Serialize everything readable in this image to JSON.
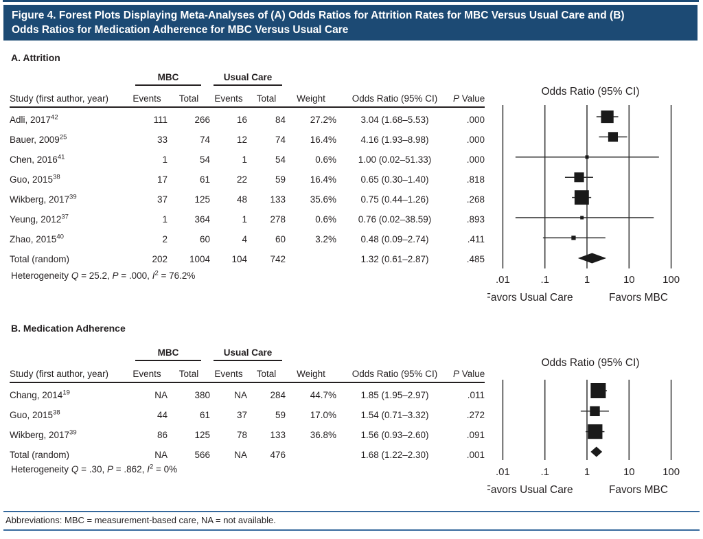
{
  "figure": {
    "title_line1": "Figure 4. Forest Plots Displaying Meta-Analyses of (A) Odds Ratios for Attrition Rates for MBC Versus Usual Care and (B)",
    "title_line2": "Odds Ratios for Medication Adherence for MBC Versus Usual Care",
    "footnote": "Abbreviations: MBC = measurement-based care, NA = not available.",
    "colors": {
      "header_bg": "#1c4a74",
      "header_text": "#ffffff",
      "rule_blue": "#35689c",
      "ink": "#231f20"
    }
  },
  "table": {
    "group_mbc": "MBC",
    "group_usual_care": "Usual Care",
    "col_study": "Study (first author, year)",
    "col_events": "Events",
    "col_total": "Total",
    "col_weight": "Weight",
    "col_or": "Odds Ratio (95% CI)",
    "col_p_italic": "P",
    "col_p_rest": " Value"
  },
  "panel_a": {
    "heading": "A. Attrition",
    "rows": [
      {
        "study": "Adli, 2017",
        "ref": "42",
        "mbc_events": "111",
        "mbc_total": "266",
        "uc_events": "16",
        "uc_total": "84",
        "weight": "27.2%",
        "or_ci": "3.04 (1.68–5.53)",
        "p": ".000"
      },
      {
        "study": "Bauer, 2009",
        "ref": "25",
        "mbc_events": "33",
        "mbc_total": "74",
        "uc_events": "12",
        "uc_total": "74",
        "weight": "16.4%",
        "or_ci": "4.16 (1.93–8.98)",
        "p": ".000"
      },
      {
        "study": "Chen, 2016",
        "ref": "41",
        "mbc_events": "1",
        "mbc_total": "54",
        "uc_events": "1",
        "uc_total": "54",
        "weight": "0.6%",
        "or_ci": "1.00 (0.02–51.33)",
        "p": ".000"
      },
      {
        "study": "Guo, 2015",
        "ref": "38",
        "mbc_events": "17",
        "mbc_total": "61",
        "uc_events": "22",
        "uc_total": "59",
        "weight": "16.4%",
        "or_ci": "0.65 (0.30–1.40)",
        "p": ".818"
      },
      {
        "study": "Wikberg, 2017",
        "ref": "39",
        "mbc_events": "37",
        "mbc_total": "125",
        "uc_events": "48",
        "uc_total": "133",
        "weight": "35.6%",
        "or_ci": "0.75 (0.44–1.26)",
        "p": ".268"
      },
      {
        "study": "Yeung, 2012",
        "ref": "37",
        "mbc_events": "1",
        "mbc_total": "364",
        "uc_events": "1",
        "uc_total": "278",
        "weight": "0.6%",
        "or_ci": "0.76 (0.02–38.59)",
        "p": ".893"
      },
      {
        "study": "Zhao, 2015",
        "ref": "40",
        "mbc_events": "2",
        "mbc_total": "60",
        "uc_events": "4",
        "uc_total": "60",
        "weight": "3.2%",
        "or_ci": "0.48 (0.09–2.74)",
        "p": ".411"
      },
      {
        "study": "Total (random)",
        "ref": "",
        "mbc_events": "202",
        "mbc_total": "1004",
        "uc_events": "104",
        "uc_total": "742",
        "weight": "",
        "or_ci": "1.32 (0.61–2.87)",
        "p": ".485"
      }
    ],
    "heterogeneity": {
      "label": "Heterogeneity ",
      "q_var": "Q",
      "q_val": " = 25.2, ",
      "p_var": "P",
      "p_val": " = .000, ",
      "i_var": "I",
      "i_exp": "2",
      "i_val": " = 76.2%"
    }
  },
  "panel_b": {
    "heading": "B. Medication Adherence",
    "rows": [
      {
        "study": "Chang, 2014",
        "ref": "19",
        "mbc_events": "NA",
        "mbc_total": "380",
        "uc_events": "NA",
        "uc_total": "284",
        "weight": "44.7%",
        "or_ci": "1.85 (1.95–2.97)",
        "p": ".011"
      },
      {
        "study": "Guo, 2015",
        "ref": "38",
        "mbc_events": "44",
        "mbc_total": "61",
        "uc_events": "37",
        "uc_total": "59",
        "weight": "17.0%",
        "or_ci": "1.54 (0.71–3.32)",
        "p": ".272"
      },
      {
        "study": "Wikberg, 2017",
        "ref": "39",
        "mbc_events": "86",
        "mbc_total": "125",
        "uc_events": "78",
        "uc_total": "133",
        "weight": "36.8%",
        "or_ci": "1.56 (0.93–2.60)",
        "p": ".091"
      },
      {
        "study": "Total (random)",
        "ref": "",
        "mbc_events": "NA",
        "mbc_total": "566",
        "uc_events": "NA",
        "uc_total": "476",
        "weight": "",
        "or_ci": "1.68 (1.22–2.30)",
        "p": ".001"
      }
    ],
    "heterogeneity": {
      "label": "Heterogeneity ",
      "q_var": "Q",
      "q_val": " = .30, ",
      "p_var": "P",
      "p_val": " = .862, ",
      "i_var": "I",
      "i_exp": "2",
      "i_val": " = 0%"
    }
  },
  "chart_data": [
    {
      "type": "forest",
      "panel": "A. Attrition",
      "title": "Odds Ratio (95% CI)",
      "x_scale": "log",
      "x_ticks": [
        0.01,
        0.1,
        1,
        10,
        100
      ],
      "x_tick_labels": [
        ".01",
        ".1",
        "1",
        "10",
        "100"
      ],
      "xlabel_left": "Favors Usual Care",
      "xlabel_right": "Favors MBC",
      "studies": [
        {
          "label": "Adli, 2017",
          "or": 3.04,
          "ci": [
            1.68,
            5.53
          ],
          "weight_pct": 27.2
        },
        {
          "label": "Bauer, 2009",
          "or": 4.16,
          "ci": [
            1.93,
            8.98
          ],
          "weight_pct": 16.4
        },
        {
          "label": "Chen, 2016",
          "or": 1.0,
          "ci": [
            0.02,
            51.33
          ],
          "weight_pct": 0.6
        },
        {
          "label": "Guo, 2015",
          "or": 0.65,
          "ci": [
            0.3,
            1.4
          ],
          "weight_pct": 16.4
        },
        {
          "label": "Wikberg, 2017",
          "or": 0.75,
          "ci": [
            0.44,
            1.26
          ],
          "weight_pct": 35.6
        },
        {
          "label": "Yeung, 2012",
          "or": 0.76,
          "ci": [
            0.02,
            38.59
          ],
          "weight_pct": 0.6
        },
        {
          "label": "Zhao, 2015",
          "or": 0.48,
          "ci": [
            0.09,
            2.74
          ],
          "weight_pct": 3.2
        }
      ],
      "summary": {
        "label": "Total (random)",
        "or": 1.32,
        "ci": [
          0.61,
          2.87
        ]
      }
    },
    {
      "type": "forest",
      "panel": "B. Medication Adherence",
      "title": "Odds Ratio (95% CI)",
      "x_scale": "log",
      "x_ticks": [
        0.01,
        0.1,
        1,
        10,
        100
      ],
      "x_tick_labels": [
        ".01",
        ".1",
        "1",
        "10",
        "100"
      ],
      "xlabel_left": "Favors Usual Care",
      "xlabel_right": "Favors MBC",
      "studies": [
        {
          "label": "Chang, 2014",
          "or": 1.85,
          "ci": [
            1.95,
            2.97
          ],
          "weight_pct": 44.7
        },
        {
          "label": "Guo, 2015",
          "or": 1.54,
          "ci": [
            0.71,
            3.32
          ],
          "weight_pct": 17.0
        },
        {
          "label": "Wikberg, 2017",
          "or": 1.56,
          "ci": [
            0.93,
            2.6
          ],
          "weight_pct": 36.8
        }
      ],
      "summary": {
        "label": "Total (random)",
        "or": 1.68,
        "ci": [
          1.22,
          2.3
        ]
      }
    }
  ]
}
